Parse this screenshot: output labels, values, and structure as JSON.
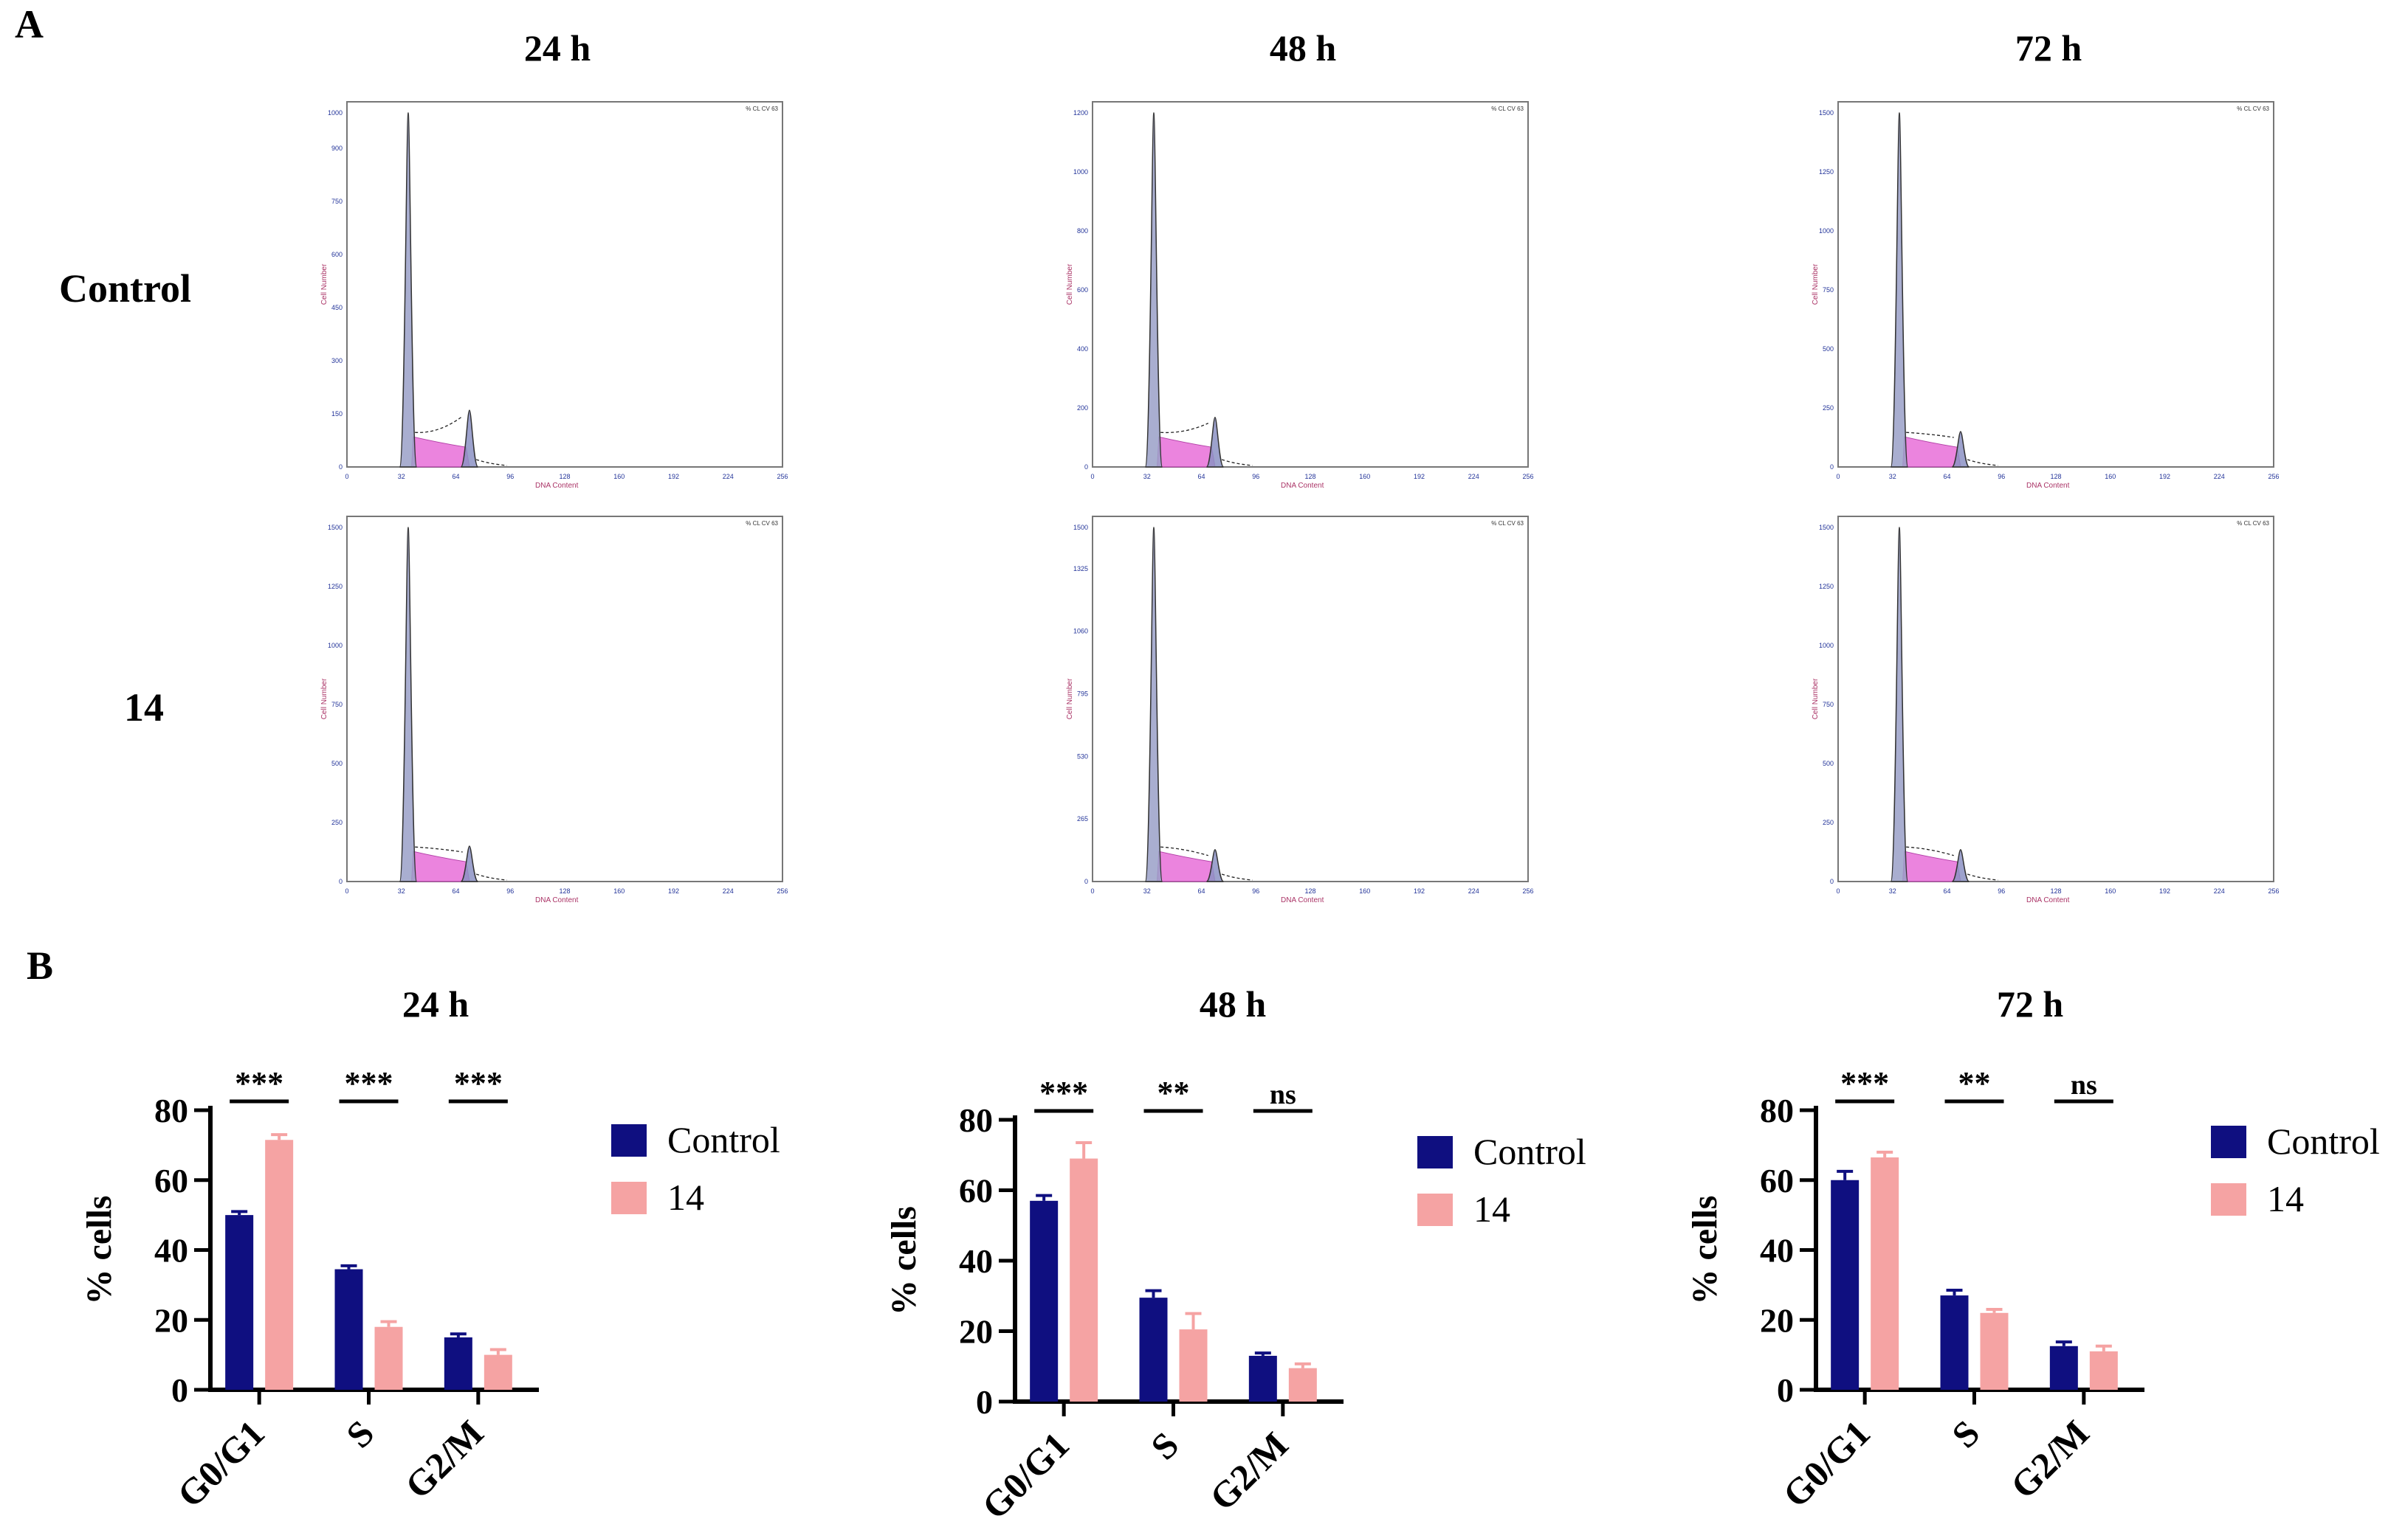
{
  "panel_a": {
    "letter": "A",
    "times": [
      "24 h",
      "48 h",
      "72 h"
    ],
    "rows": [
      "Control",
      "14"
    ],
    "histogram": {
      "xlabel": "DNA Content",
      "ylabel": "Cell Number",
      "corner_text": "% CL CV 63",
      "x_ticks": [
        "0",
        "32",
        "64",
        "96",
        "128",
        "160",
        "192",
        "224",
        "256"
      ],
      "g1_position": 36,
      "g2_position": 72,
      "panels": [
        {
          "time": "24 h",
          "row": "Control",
          "ymax": 1000,
          "y_ticks": [
            "0",
            "150",
            "300",
            "450",
            "600",
            "750",
            "900",
            "1000"
          ],
          "g1_peak": 1.0,
          "g2_peak": 0.16
        },
        {
          "time": "48 h",
          "row": "Control",
          "ymax": 1200,
          "y_ticks": [
            "0",
            "200",
            "400",
            "600",
            "800",
            "1000",
            "1200"
          ],
          "g1_peak": 1.0,
          "g2_peak": 0.14
        },
        {
          "time": "72 h",
          "row": "Control",
          "ymax": 1500,
          "y_ticks": [
            "0",
            "250",
            "500",
            "750",
            "1000",
            "1250",
            "1500"
          ],
          "g1_peak": 1.0,
          "g2_peak": 0.1
        },
        {
          "time": "24 h",
          "row": "14",
          "ymax": 1500,
          "y_ticks": [
            "0",
            "250",
            "500",
            "750",
            "1000",
            "1250",
            "1500"
          ],
          "g1_peak": 1.0,
          "g2_peak": 0.1
        },
        {
          "time": "48 h",
          "row": "14",
          "ymax": 1500,
          "y_ticks": [
            "0",
            "265",
            "530",
            "795",
            "1060",
            "1325",
            "1500"
          ],
          "g1_peak": 1.0,
          "g2_peak": 0.09
        },
        {
          "time": "72 h",
          "row": "14",
          "ymax": 1500,
          "y_ticks": [
            "0",
            "250",
            "500",
            "750",
            "1000",
            "1250",
            "1500"
          ],
          "g1_peak": 1.0,
          "g2_peak": 0.09
        }
      ]
    }
  },
  "panel_b": {
    "letter": "B",
    "legend": [
      "Control",
      "14"
    ],
    "colors": {
      "control": "#0f0f80",
      "treated": "#f5a3a3"
    }
  },
  "chart_data": [
    {
      "type": "bar",
      "title": "24 h",
      "categories": [
        "G0/G1",
        "S",
        "G2/M"
      ],
      "series": [
        {
          "name": "Control",
          "values": [
            50,
            34.5,
            15
          ],
          "errors": [
            1,
            1,
            1
          ]
        },
        {
          "name": "14",
          "values": [
            71.5,
            18,
            10
          ],
          "errors": [
            1.5,
            1.5,
            1.5
          ]
        }
      ],
      "significance": [
        "***",
        "***",
        "***"
      ],
      "xlabel": "",
      "ylabel": "% cells",
      "ylim": [
        0,
        80
      ],
      "yticks": [
        0,
        20,
        40,
        60,
        80
      ]
    },
    {
      "type": "bar",
      "title": "48 h",
      "categories": [
        "G0/G1",
        "S",
        "G2/M"
      ],
      "series": [
        {
          "name": "Control",
          "values": [
            57,
            29.5,
            13
          ],
          "errors": [
            1.5,
            2,
            0.8
          ]
        },
        {
          "name": "14",
          "values": [
            69,
            20.5,
            9.5
          ],
          "errors": [
            4.5,
            4.5,
            1.2
          ]
        }
      ],
      "significance": [
        "***",
        "**",
        "ns"
      ],
      "xlabel": "",
      "ylabel": "% cells",
      "ylim": [
        0,
        80
      ],
      "yticks": [
        0,
        20,
        40,
        60,
        80
      ]
    },
    {
      "type": "bar",
      "title": "72 h",
      "categories": [
        "G0/G1",
        "S",
        "G2/M"
      ],
      "series": [
        {
          "name": "Control",
          "values": [
            60,
            27,
            12.5
          ],
          "errors": [
            2.5,
            1.5,
            1.2
          ]
        },
        {
          "name": "14",
          "values": [
            66.5,
            22,
            11
          ],
          "errors": [
            1.5,
            1,
            1.5
          ]
        }
      ],
      "significance": [
        "***",
        "**",
        "ns"
      ],
      "xlabel": "",
      "ylabel": "% cells",
      "ylim": [
        0,
        80
      ],
      "yticks": [
        0,
        20,
        40,
        60,
        80
      ]
    }
  ]
}
